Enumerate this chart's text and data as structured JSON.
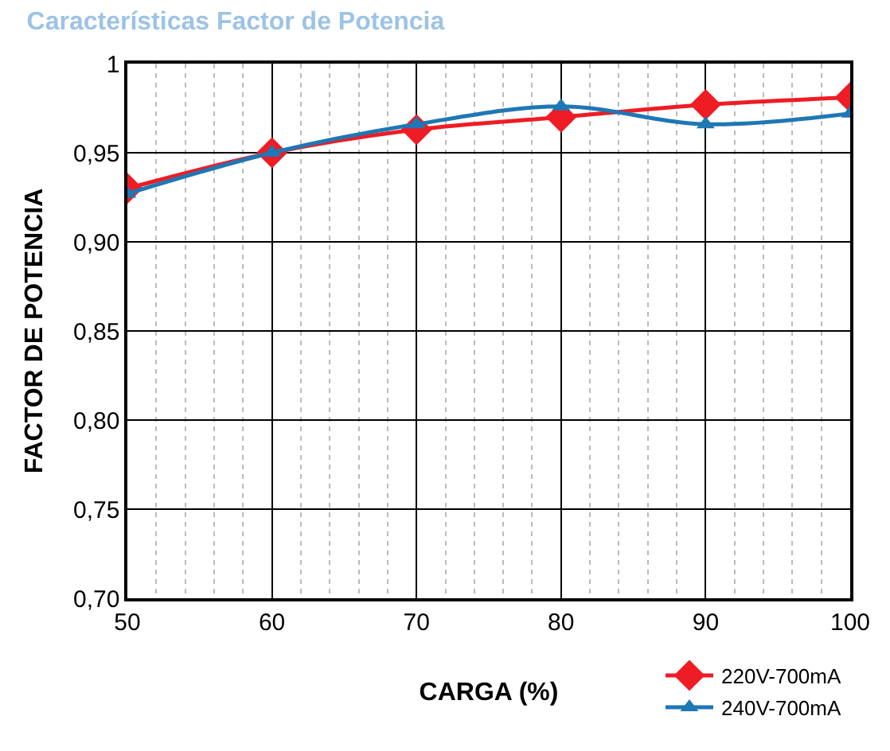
{
  "chart_data": {
    "type": "line",
    "title": "Características Factor de Potencia",
    "xlabel": "CARGA (%)",
    "ylabel": "FACTOR DE POTENCIA",
    "x": [
      50,
      60,
      70,
      80,
      90,
      100
    ],
    "series": [
      {
        "name": "220V-700mA",
        "color": "#ee1c24",
        "marker": "diamond",
        "values": [
          0.93,
          0.95,
          0.963,
          0.97,
          0.977,
          0.981
        ]
      },
      {
        "name": "240V-700mA",
        "color": "#1f77b4",
        "marker": "triangle",
        "values": [
          0.927,
          0.95,
          0.966,
          0.976,
          0.966,
          0.972
        ]
      }
    ],
    "xlim": [
      50,
      100
    ],
    "xticks": [
      50,
      60,
      70,
      80,
      90,
      100
    ],
    "ylim": [
      0.7,
      1
    ],
    "yticks": [
      {
        "value": 0.7,
        "label": "0,70"
      },
      {
        "value": 0.75,
        "label": "0,75"
      },
      {
        "value": 0.8,
        "label": "0,80"
      },
      {
        "value": 0.85,
        "label": "0,85"
      },
      {
        "value": 0.9,
        "label": "0,90"
      },
      {
        "value": 0.95,
        "label": "0,95"
      },
      1
    ],
    "grid": true,
    "legend": "bottom right",
    "line_style": "solid"
  }
}
